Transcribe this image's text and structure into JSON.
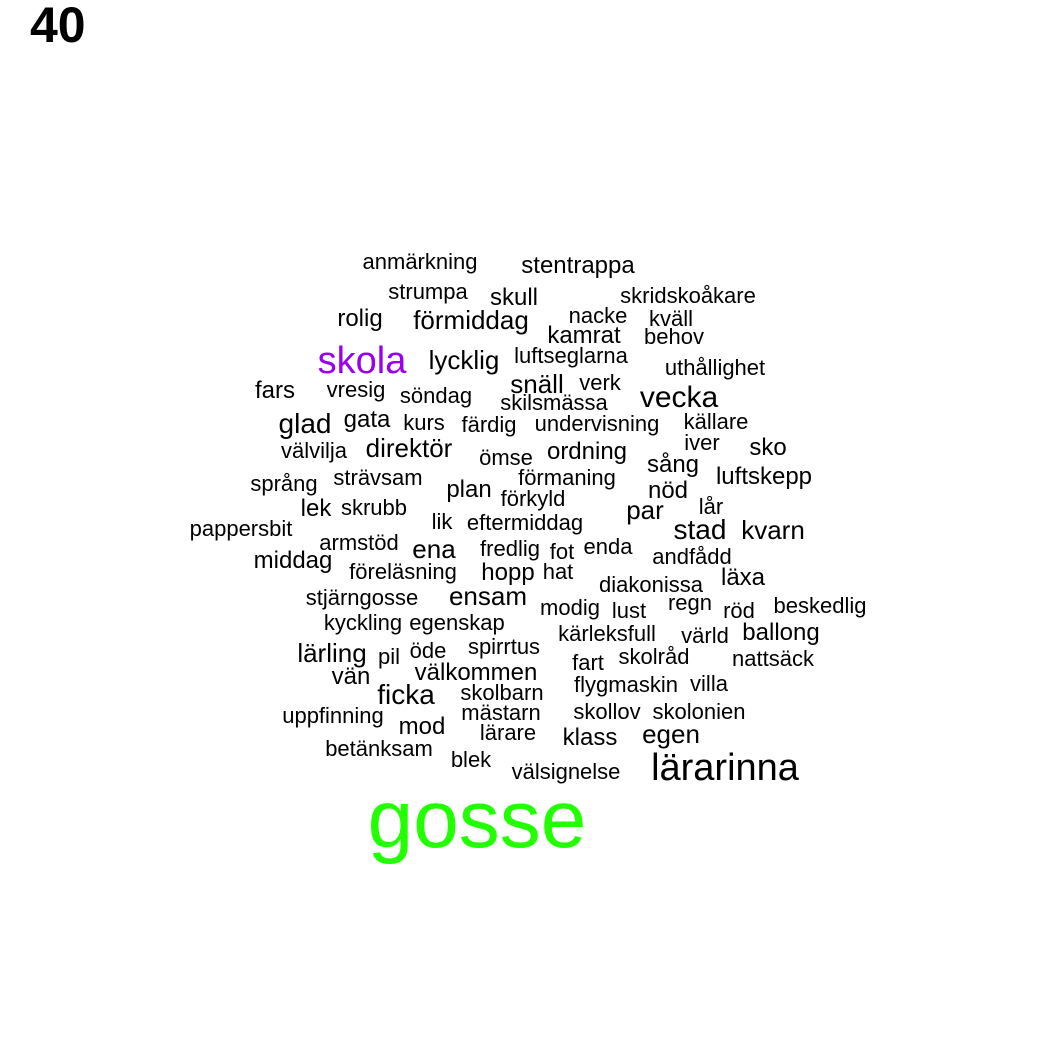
{
  "page_number": "40",
  "colors": {
    "default": "#000000",
    "highlight_green": "#22ff00",
    "highlight_purple": "#9900ee"
  },
  "words": [
    {
      "text": "anmärkning"
    },
    {
      "text": "stentrappa"
    },
    {
      "text": "strumpa"
    },
    {
      "text": "skull"
    },
    {
      "text": "skridskoåkare"
    },
    {
      "text": "rolig"
    },
    {
      "text": "förmiddag"
    },
    {
      "text": "nacke"
    },
    {
      "text": "kväll"
    },
    {
      "text": "kamrat"
    },
    {
      "text": "behov"
    },
    {
      "text": "skola",
      "color": "#9900ee"
    },
    {
      "text": "lycklig"
    },
    {
      "text": "luftseglarna"
    },
    {
      "text": "uthållighet"
    },
    {
      "text": "fars"
    },
    {
      "text": "vresig"
    },
    {
      "text": "söndag"
    },
    {
      "text": "snäll"
    },
    {
      "text": "verk"
    },
    {
      "text": "vecka"
    },
    {
      "text": "skilsmässa"
    },
    {
      "text": "glad"
    },
    {
      "text": "gata"
    },
    {
      "text": "kurs"
    },
    {
      "text": "färdig"
    },
    {
      "text": "undervisning"
    },
    {
      "text": "källare"
    },
    {
      "text": "välvilja"
    },
    {
      "text": "direktör"
    },
    {
      "text": "iver"
    },
    {
      "text": "sko"
    },
    {
      "text": "ömse"
    },
    {
      "text": "ordning"
    },
    {
      "text": "sång"
    },
    {
      "text": "språng"
    },
    {
      "text": "strävsam"
    },
    {
      "text": "förmaning"
    },
    {
      "text": "luftskepp"
    },
    {
      "text": "plan"
    },
    {
      "text": "nöd"
    },
    {
      "text": "förkyld"
    },
    {
      "text": "lek"
    },
    {
      "text": "skrubb"
    },
    {
      "text": "par"
    },
    {
      "text": "lår"
    },
    {
      "text": "pappersbit"
    },
    {
      "text": "lik"
    },
    {
      "text": "eftermiddag"
    },
    {
      "text": "stad"
    },
    {
      "text": "kvarn"
    },
    {
      "text": "armstöd"
    },
    {
      "text": "ena"
    },
    {
      "text": "fredlig"
    },
    {
      "text": "fot"
    },
    {
      "text": "enda"
    },
    {
      "text": "andfådd"
    },
    {
      "text": "middag"
    },
    {
      "text": "föreläsning"
    },
    {
      "text": "hopp"
    },
    {
      "text": "hat"
    },
    {
      "text": "läxa"
    },
    {
      "text": "diakonissa"
    },
    {
      "text": "stjärngosse"
    },
    {
      "text": "ensam"
    },
    {
      "text": "regn"
    },
    {
      "text": "modig"
    },
    {
      "text": "lust"
    },
    {
      "text": "röd"
    },
    {
      "text": "beskedlig"
    },
    {
      "text": "kyckling"
    },
    {
      "text": "egenskap"
    },
    {
      "text": "kärleksfull"
    },
    {
      "text": "värld"
    },
    {
      "text": "ballong"
    },
    {
      "text": "lärling"
    },
    {
      "text": "öde"
    },
    {
      "text": "spirrtus"
    },
    {
      "text": "pil"
    },
    {
      "text": "skolråd"
    },
    {
      "text": "fart"
    },
    {
      "text": "nattsäck"
    },
    {
      "text": "vän"
    },
    {
      "text": "välkommen"
    },
    {
      "text": "flygmaskin"
    },
    {
      "text": "villa"
    },
    {
      "text": "ficka"
    },
    {
      "text": "skolbarn"
    },
    {
      "text": "uppfinning"
    },
    {
      "text": "mästarn"
    },
    {
      "text": "skollov"
    },
    {
      "text": "skolonien"
    },
    {
      "text": "mod"
    },
    {
      "text": "lärare"
    },
    {
      "text": "klass"
    },
    {
      "text": "egen"
    },
    {
      "text": "betänksam"
    },
    {
      "text": "blek"
    },
    {
      "text": "välsignelse"
    },
    {
      "text": "lärarinna"
    },
    {
      "text": "gosse",
      "color": "#22ff00"
    }
  ]
}
